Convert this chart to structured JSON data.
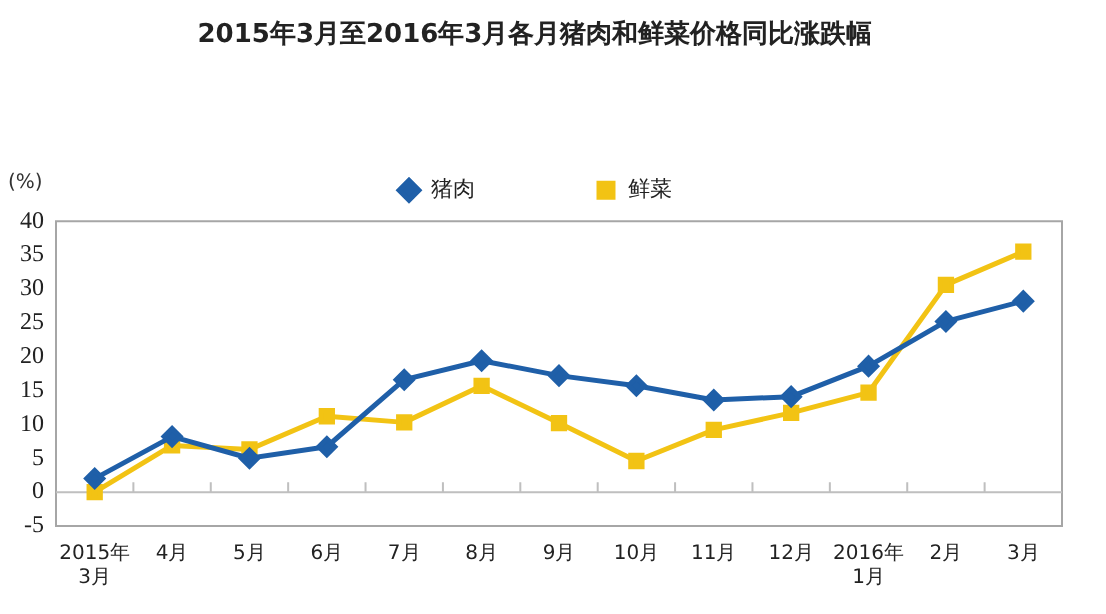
{
  "chart_data": {
    "type": "line",
    "title": "2015年3月至2016年3月各月猪肉和鲜菜价格同比涨跌幅",
    "ylabel": "(%)",
    "categories": [
      "2015年\n3月",
      "4月",
      "5月",
      "6月",
      "7月",
      "8月",
      "9月",
      "10月",
      "11月",
      "12月",
      "2016年\n1月",
      "2月",
      "3月"
    ],
    "series": [
      {
        "name": "猪肉",
        "color": "#1f5fa8",
        "marker": "diamond",
        "values": [
          2.0,
          8.2,
          5.0,
          6.7,
          16.6,
          19.4,
          17.2,
          15.7,
          13.6,
          14.1,
          18.6,
          25.2,
          28.2
        ]
      },
      {
        "name": "鲜菜",
        "color": "#f2c314",
        "marker": "square",
        "values": [
          0,
          6.9,
          6.3,
          11.2,
          10.3,
          15.7,
          10.2,
          4.6,
          9.2,
          11.7,
          14.7,
          30.6,
          35.5
        ]
      }
    ],
    "ylim": [
      -5,
      40
    ],
    "yticks": [
      -5,
      0,
      5,
      10,
      15,
      20,
      25,
      30,
      35,
      40
    ],
    "ref_lines": [
      {
        "axis": "y",
        "value": 0,
        "color": "#bfbfbf"
      }
    ],
    "grid": false,
    "legend": "top",
    "line_style": "solid"
  }
}
